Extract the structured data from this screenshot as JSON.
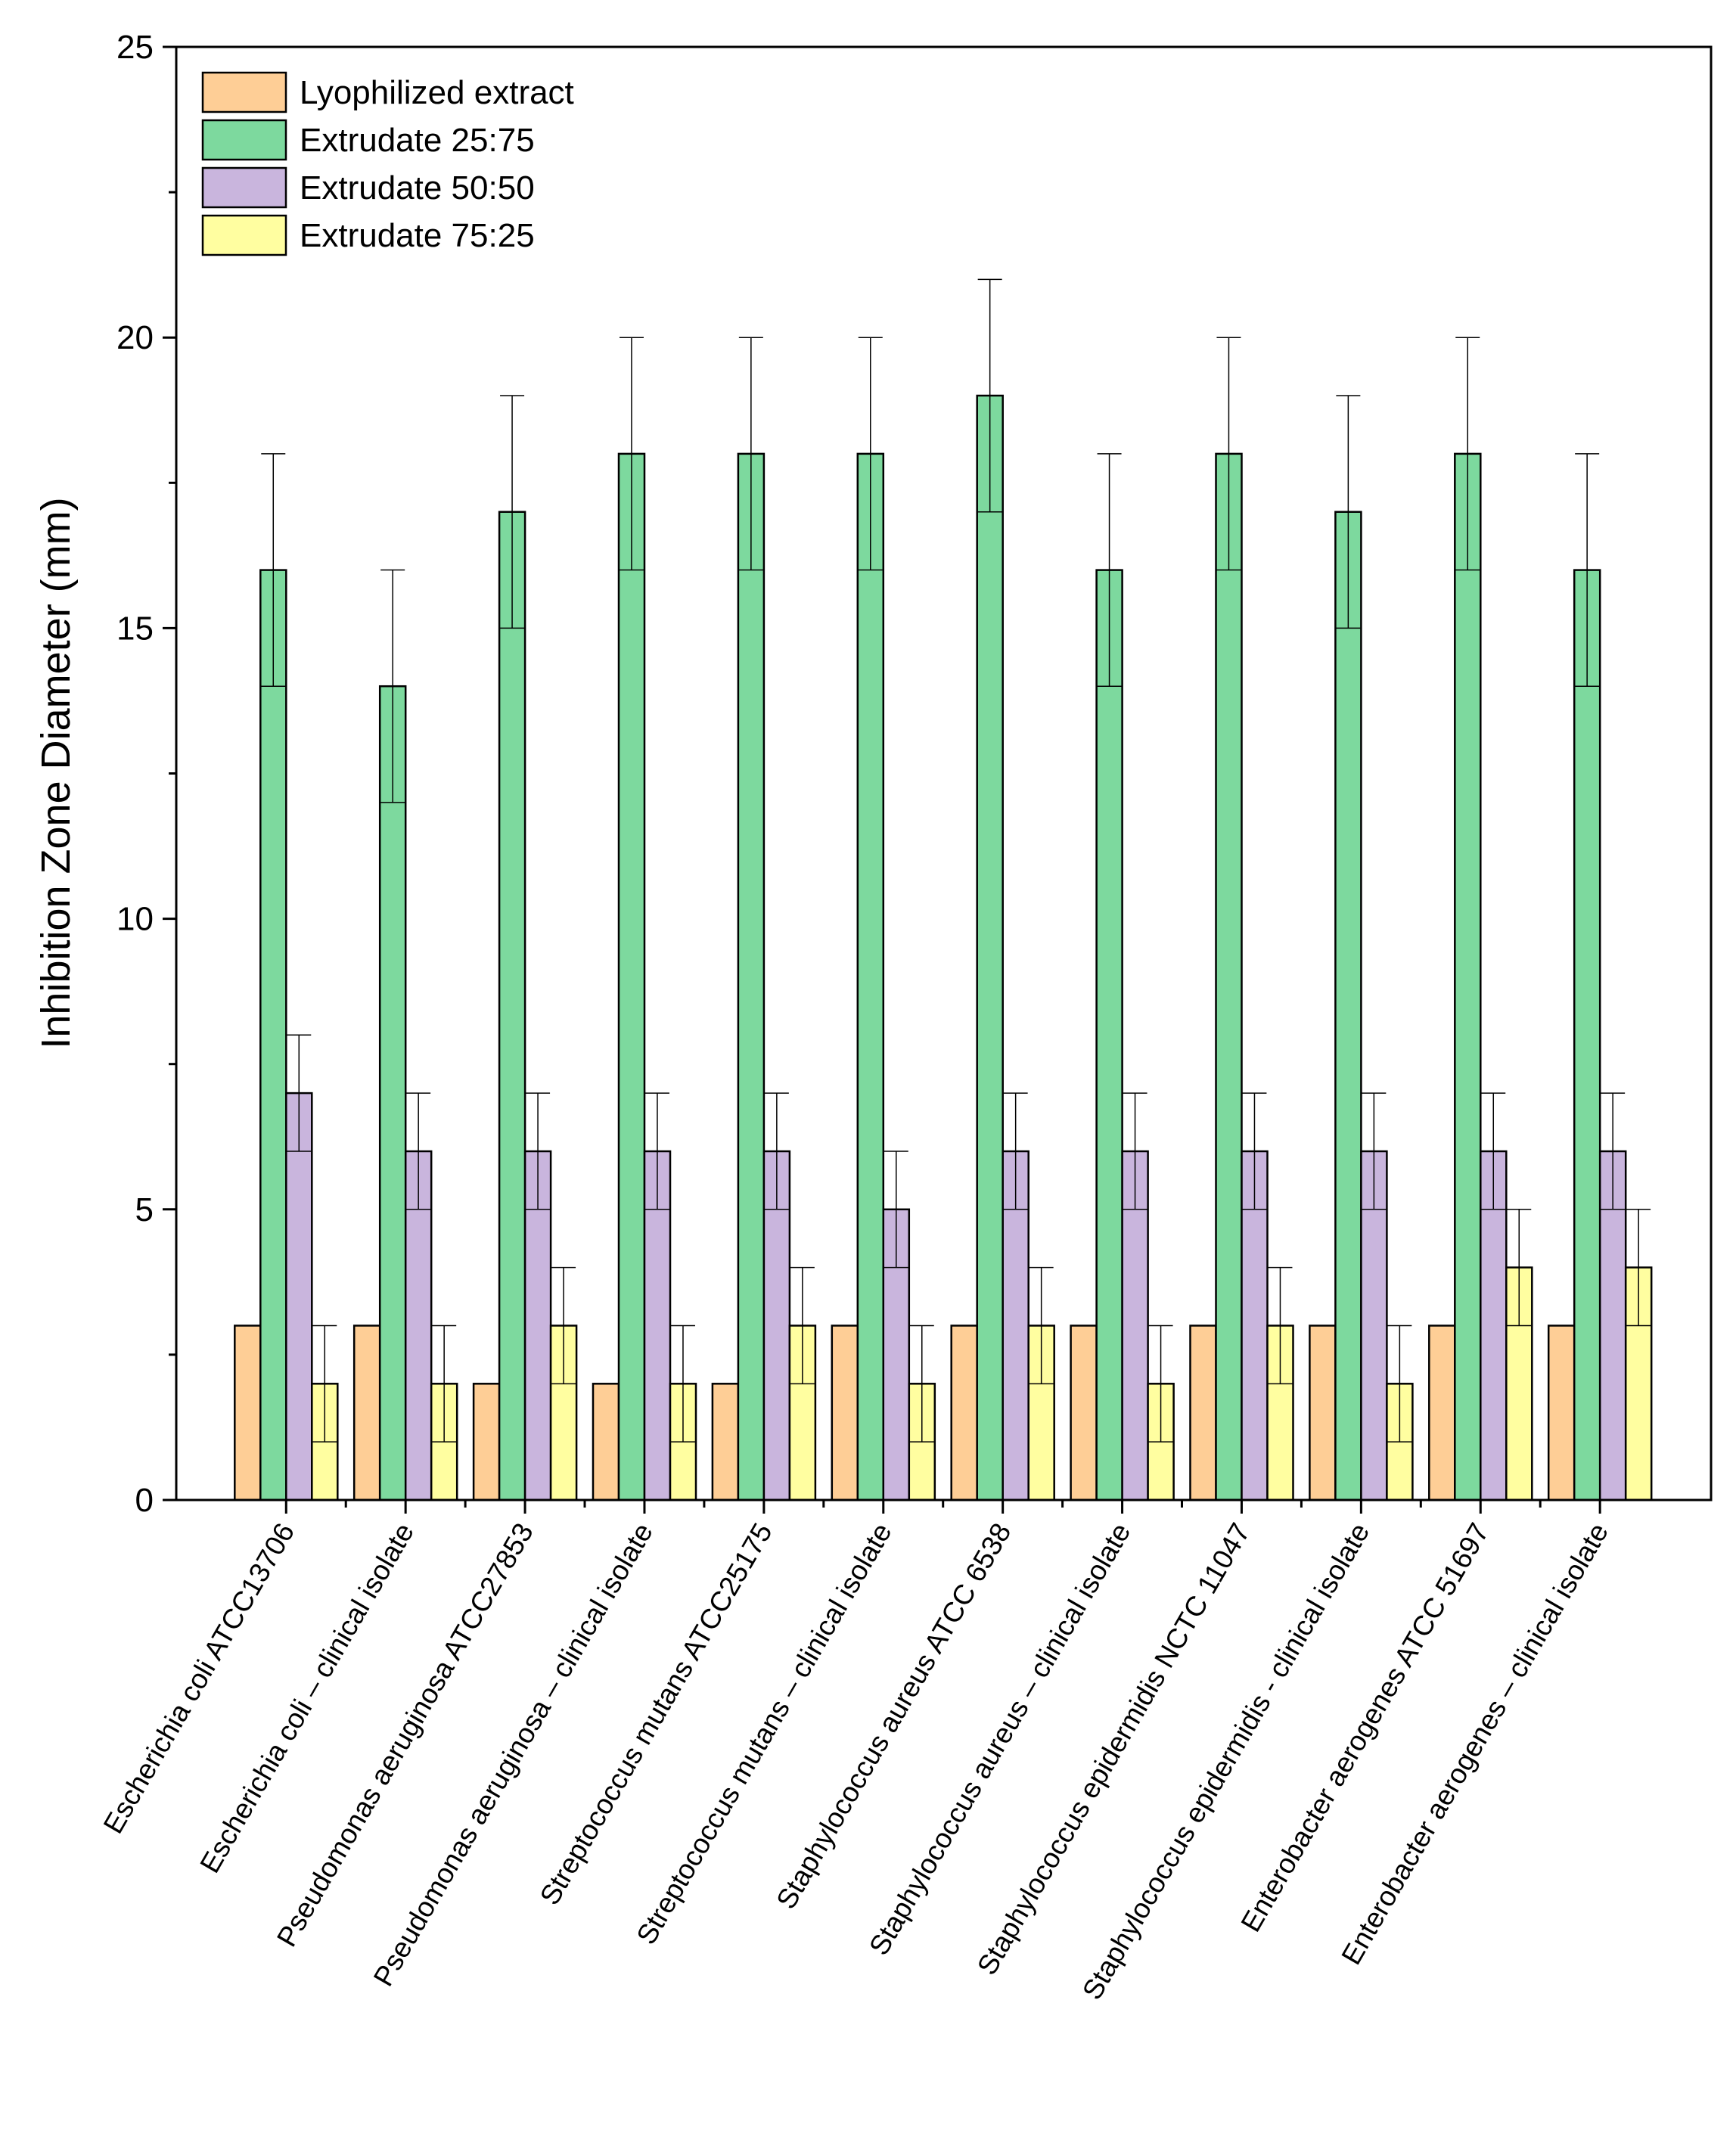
{
  "chart_data": {
    "type": "bar",
    "title": "",
    "xlabel": "",
    "ylabel": "Inhibition Zone Diameter (mm)",
    "ylim": [
      0,
      25
    ],
    "yticks": [
      0,
      5,
      10,
      15,
      20,
      25
    ],
    "grid": false,
    "legend_position": "top-left",
    "categories": [
      "Escherichia coli ATCC13706",
      "Escherichia coli – clinical isolate",
      "Pseudomonas aeruginosa ATCC27853",
      "Pseudomonas aeruginosa – clinical isolate",
      "Streptococcus mutans ATCC25175",
      "Streptococcus mutans – clinical isolate",
      "Staphylococcus aureus ATCC 6538",
      "Staphylococcus aureus – clinical isolate",
      "Staphylococcus epidermidis NCTC 11047",
      "Staphylococcus epidermidis - clinical isolate",
      "Enterobacter aerogenes ATCC 51697",
      "Enterobacter aerogenes – clinical isolate"
    ],
    "series": [
      {
        "name": "Lyophilized extract",
        "color": "#FECE96",
        "values": [
          3,
          3,
          2,
          2,
          2,
          3,
          3,
          3,
          3,
          3,
          3,
          3
        ],
        "errors": [
          0,
          0,
          0,
          0,
          0,
          0,
          0,
          0,
          0,
          0,
          0,
          0
        ]
      },
      {
        "name": "Extrudate 25:75",
        "color": "#7DD99E",
        "values": [
          16,
          14,
          17,
          18,
          18,
          18,
          19,
          16,
          18,
          17,
          18,
          16
        ],
        "errors": [
          2,
          2,
          2,
          2,
          2,
          2,
          2,
          2,
          2,
          2,
          2,
          2
        ]
      },
      {
        "name": "Extrudate 50:50",
        "color": "#C9B5DD",
        "values": [
          7,
          6,
          6,
          6,
          6,
          5,
          6,
          6,
          6,
          6,
          6,
          6
        ],
        "errors": [
          1,
          1,
          1,
          1,
          1,
          1,
          1,
          1,
          1,
          1,
          1,
          1
        ]
      },
      {
        "name": "Extrudate 75:25",
        "color": "#FFFEA0",
        "values": [
          2,
          2,
          3,
          2,
          3,
          2,
          3,
          2,
          3,
          2,
          4,
          4
        ],
        "errors": [
          1,
          1,
          1,
          1,
          1,
          1,
          1,
          1,
          1,
          1,
          1,
          1
        ]
      }
    ]
  }
}
